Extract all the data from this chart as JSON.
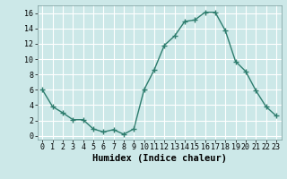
{
  "x": [
    0,
    1,
    2,
    3,
    4,
    5,
    6,
    7,
    8,
    9,
    10,
    11,
    12,
    13,
    14,
    15,
    16,
    17,
    18,
    19,
    20,
    21,
    22,
    23
  ],
  "y": [
    6,
    3.8,
    3.0,
    2.1,
    2.1,
    0.9,
    0.5,
    0.8,
    0.2,
    0.9,
    6.0,
    8.6,
    11.8,
    13.0,
    14.9,
    15.1,
    16.1,
    16.1,
    13.7,
    9.7,
    8.4,
    5.9,
    3.8,
    2.6
  ],
  "line_color": "#2e7d6e",
  "marker": "+",
  "marker_size": 4,
  "marker_linewidth": 1.0,
  "line_width": 1.0,
  "bg_color": "#cce8e8",
  "grid_color": "#ffffff",
  "xlabel": "Humidex (Indice chaleur)",
  "xlim": [
    -0.5,
    23.5
  ],
  "ylim": [
    -0.5,
    17.0
  ],
  "xtick_labels": [
    "0",
    "1",
    "2",
    "3",
    "4",
    "5",
    "6",
    "7",
    "8",
    "9",
    "10",
    "11",
    "12",
    "13",
    "14",
    "15",
    "16",
    "17",
    "18",
    "19",
    "20",
    "21",
    "22",
    "23"
  ],
  "ytick_values": [
    0,
    2,
    4,
    6,
    8,
    10,
    12,
    14,
    16
  ],
  "fontsize_tick": 6,
  "fontsize_xlabel": 7.5
}
